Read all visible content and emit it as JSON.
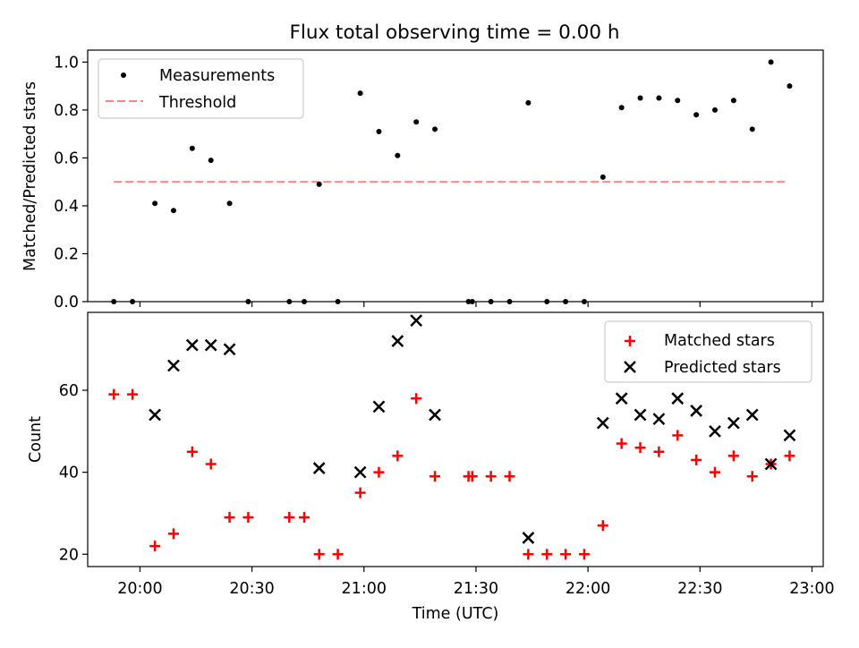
{
  "title": "Flux total observing time = 0.00 h",
  "chart_data": [
    {
      "type": "scatter",
      "ylabel": "Matched/Predicted stars",
      "xlabel": "",
      "xlim": [
        "19:46",
        "23:03"
      ],
      "ylim": [
        0,
        1.05
      ],
      "yticks": [
        "0.0",
        "0.2",
        "0.4",
        "0.6",
        "0.8",
        "1.0"
      ],
      "legend_position": "top-left",
      "legend": [
        "Measurements",
        "Threshold"
      ],
      "threshold": {
        "y": 0.5,
        "x_start": "19:53",
        "x_end": "22:53",
        "color": "#ff8080"
      },
      "series": [
        {
          "name": "Measurements",
          "color": "#000000",
          "x": [
            "19:53",
            "19:58",
            "20:04",
            "20:09",
            "20:14",
            "20:19",
            "20:24",
            "20:29",
            "20:40",
            "20:44",
            "20:48",
            "20:53",
            "20:59",
            "21:04",
            "21:09",
            "21:14",
            "21:19",
            "21:28",
            "21:29",
            "21:34",
            "21:39",
            "21:44",
            "21:49",
            "21:54",
            "21:59",
            "22:04",
            "22:09",
            "22:14",
            "22:19",
            "22:24",
            "22:29",
            "22:34",
            "22:39",
            "22:44",
            "22:49",
            "22:54"
          ],
          "y": [
            0.0,
            0.0,
            0.41,
            0.38,
            0.64,
            0.59,
            0.41,
            0.0,
            0.0,
            0.0,
            0.49,
            0.0,
            0.87,
            0.71,
            0.61,
            0.75,
            0.72,
            0.0,
            0.0,
            0.0,
            0.0,
            0.83,
            0.0,
            0.0,
            0.0,
            0.52,
            0.81,
            0.85,
            0.85,
            0.84,
            0.78,
            0.8,
            0.84,
            0.72,
            1.0,
            0.9
          ]
        }
      ]
    },
    {
      "type": "scatter",
      "ylabel": "Count",
      "xlabel": "Time (UTC)",
      "xlim": [
        "19:46",
        "23:03"
      ],
      "ylim": [
        17,
        79
      ],
      "yticks": [
        "20",
        "40",
        "60"
      ],
      "xticks": [
        "20:00",
        "20:30",
        "21:00",
        "21:30",
        "22:00",
        "22:30",
        "23:00"
      ],
      "legend_position": "top-right",
      "legend": [
        "Matched stars",
        "Predicted stars"
      ],
      "series": [
        {
          "name": "Matched stars",
          "marker": "plus",
          "color": "#ff0000",
          "x": [
            "19:53",
            "19:58",
            "20:04",
            "20:09",
            "20:14",
            "20:19",
            "20:24",
            "20:29",
            "20:40",
            "20:44",
            "20:48",
            "20:53",
            "20:59",
            "21:04",
            "21:09",
            "21:14",
            "21:19",
            "21:28",
            "21:29",
            "21:34",
            "21:39",
            "21:44",
            "21:49",
            "21:54",
            "21:59",
            "22:04",
            "22:09",
            "22:14",
            "22:19",
            "22:24",
            "22:29",
            "22:34",
            "22:39",
            "22:44",
            "22:49",
            "22:54"
          ],
          "y": [
            59,
            59,
            22,
            25,
            45,
            42,
            29,
            29,
            29,
            29,
            20,
            20,
            35,
            40,
            44,
            58,
            39,
            39,
            39,
            39,
            39,
            20,
            20,
            20,
            20,
            27,
            47,
            46,
            45,
            49,
            43,
            40,
            44,
            39,
            42,
            44
          ]
        },
        {
          "name": "Predicted stars",
          "marker": "x",
          "color": "#000000",
          "x": [
            "20:04",
            "20:09",
            "20:14",
            "20:19",
            "20:24",
            "20:48",
            "20:59",
            "21:04",
            "21:09",
            "21:14",
            "21:19",
            "21:44",
            "22:04",
            "22:09",
            "22:14",
            "22:19",
            "22:24",
            "22:29",
            "22:34",
            "22:39",
            "22:44",
            "22:49",
            "22:54"
          ],
          "y": [
            54,
            66,
            71,
            71,
            70,
            41,
            40,
            56,
            72,
            77,
            54,
            24,
            52,
            58,
            54,
            53,
            58,
            55,
            50,
            52,
            54,
            42,
            49
          ]
        }
      ]
    }
  ]
}
